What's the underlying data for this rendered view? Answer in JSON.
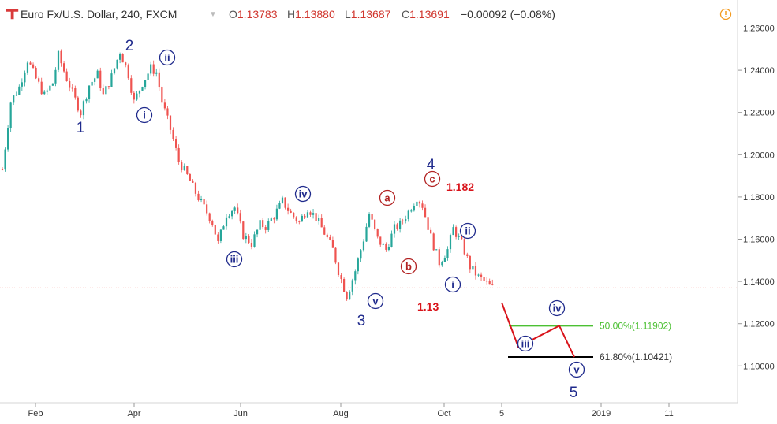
{
  "header": {
    "symbol": "Euro Fx/U.S. Dollar, 240, FXCM",
    "open_label": "O",
    "open": "1.13783",
    "high_label": "H",
    "high": "1.13880",
    "low_label": "L",
    "low": "1.13687",
    "close_label": "C",
    "close": "1.13691",
    "change": "−0.00092 (−0.08%)"
  },
  "colors": {
    "up": "#26a69a",
    "down": "#ef5350",
    "blue": "#1f2a8c",
    "red": "#b22222",
    "fib50": "#4cc033",
    "fib618": "#000000",
    "projection": "#d9141b"
  },
  "icons": {
    "logo": "tradingview-logo",
    "alert": "alert-icon"
  },
  "chart_data": {
    "type": "candlestick",
    "y_ticks": [
      "1.26000",
      "1.24000",
      "1.22000",
      "1.20000",
      "1.18000",
      "1.16000",
      "1.14000",
      "1.12000",
      "1.10000"
    ],
    "ylim": [
      1.0925,
      1.2665
    ],
    "x_ticks": [
      "Feb",
      "Apr",
      "Jun",
      "Aug",
      "Oct",
      "5",
      "2019",
      "11"
    ],
    "current_price": 1.13691,
    "price_path": [
      [
        0,
        1.193
      ],
      [
        3,
        1.225
      ],
      [
        6,
        1.232
      ],
      [
        9,
        1.245
      ],
      [
        12,
        1.236
      ],
      [
        15,
        1.228
      ],
      [
        18,
        1.234
      ],
      [
        20,
        1.247
      ],
      [
        23,
        1.236
      ],
      [
        26,
        1.226
      ],
      [
        28,
        1.22
      ],
      [
        31,
        1.233
      ],
      [
        34,
        1.238
      ],
      [
        36,
        1.228
      ],
      [
        39,
        1.237
      ],
      [
        42,
        1.249
      ],
      [
        45,
        1.238
      ],
      [
        47,
        1.225
      ],
      [
        50,
        1.234
      ],
      [
        53,
        1.241
      ],
      [
        55,
        1.239
      ],
      [
        57,
        1.225
      ],
      [
        60,
        1.212
      ],
      [
        63,
        1.197
      ],
      [
        66,
        1.19
      ],
      [
        69,
        1.182
      ],
      [
        72,
        1.175
      ],
      [
        75,
        1.168
      ],
      [
        77,
        1.158
      ],
      [
        80,
        1.172
      ],
      [
        83,
        1.175
      ],
      [
        86,
        1.162
      ],
      [
        89,
        1.158
      ],
      [
        92,
        1.167
      ],
      [
        94,
        1.166
      ],
      [
        97,
        1.171
      ],
      [
        100,
        1.178
      ],
      [
        103,
        1.172
      ],
      [
        106,
        1.168
      ],
      [
        109,
        1.175
      ],
      [
        112,
        1.17
      ],
      [
        115,
        1.163
      ],
      [
        118,
        1.155
      ],
      [
        120,
        1.145
      ],
      [
        123,
        1.133
      ],
      [
        126,
        1.145
      ],
      [
        129,
        1.16
      ],
      [
        131,
        1.172
      ],
      [
        134,
        1.16
      ],
      [
        137,
        1.155
      ],
      [
        140,
        1.165
      ],
      [
        142,
        1.167
      ],
      [
        145,
        1.173
      ],
      [
        148,
        1.18
      ],
      [
        150,
        1.176
      ],
      [
        153,
        1.161
      ],
      [
        156,
        1.149
      ],
      [
        159,
        1.155
      ],
      [
        161,
        1.165
      ],
      [
        164,
        1.158
      ],
      [
        167,
        1.147
      ],
      [
        170,
        1.142
      ],
      [
        172,
        1.14
      ],
      [
        175,
        1.137
      ]
    ],
    "waves": [
      {
        "label": "1",
        "style": "plain",
        "color": "blue"
      },
      {
        "label": "2",
        "style": "plain",
        "color": "blue"
      },
      {
        "label": "3",
        "style": "plain",
        "color": "blue"
      },
      {
        "label": "4",
        "style": "plain",
        "color": "blue"
      },
      {
        "label": "5",
        "style": "plain",
        "color": "blue"
      },
      {
        "label": "i",
        "style": "circle",
        "color": "blue"
      },
      {
        "label": "ii",
        "style": "circle",
        "color": "blue"
      },
      {
        "label": "iii",
        "style": "circle",
        "color": "blue"
      },
      {
        "label": "iv",
        "style": "circle",
        "color": "blue"
      },
      {
        "label": "v",
        "style": "circle",
        "color": "blue"
      },
      {
        "label": "a",
        "style": "circle",
        "color": "red"
      },
      {
        "label": "b",
        "style": "circle",
        "color": "red"
      },
      {
        "label": "c",
        "style": "circle",
        "color": "red"
      },
      {
        "label": "i",
        "style": "circle",
        "color": "blue"
      },
      {
        "label": "ii",
        "style": "circle",
        "color": "blue"
      },
      {
        "label": "iii",
        "style": "circle",
        "color": "blue"
      },
      {
        "label": "iv",
        "style": "circle",
        "color": "blue"
      },
      {
        "label": "v",
        "style": "circle",
        "color": "blue"
      }
    ],
    "price_notes": [
      "1.182",
      "1.13"
    ],
    "fib_levels": [
      {
        "label": "50.00%(1.11902)",
        "value": 1.11902,
        "color": "fib50"
      },
      {
        "label": "61.80%(1.10421)",
        "value": 1.10421,
        "color": "fib618"
      }
    ],
    "projection": [
      1.13,
      1.109,
      1.119,
      1.10421
    ]
  }
}
